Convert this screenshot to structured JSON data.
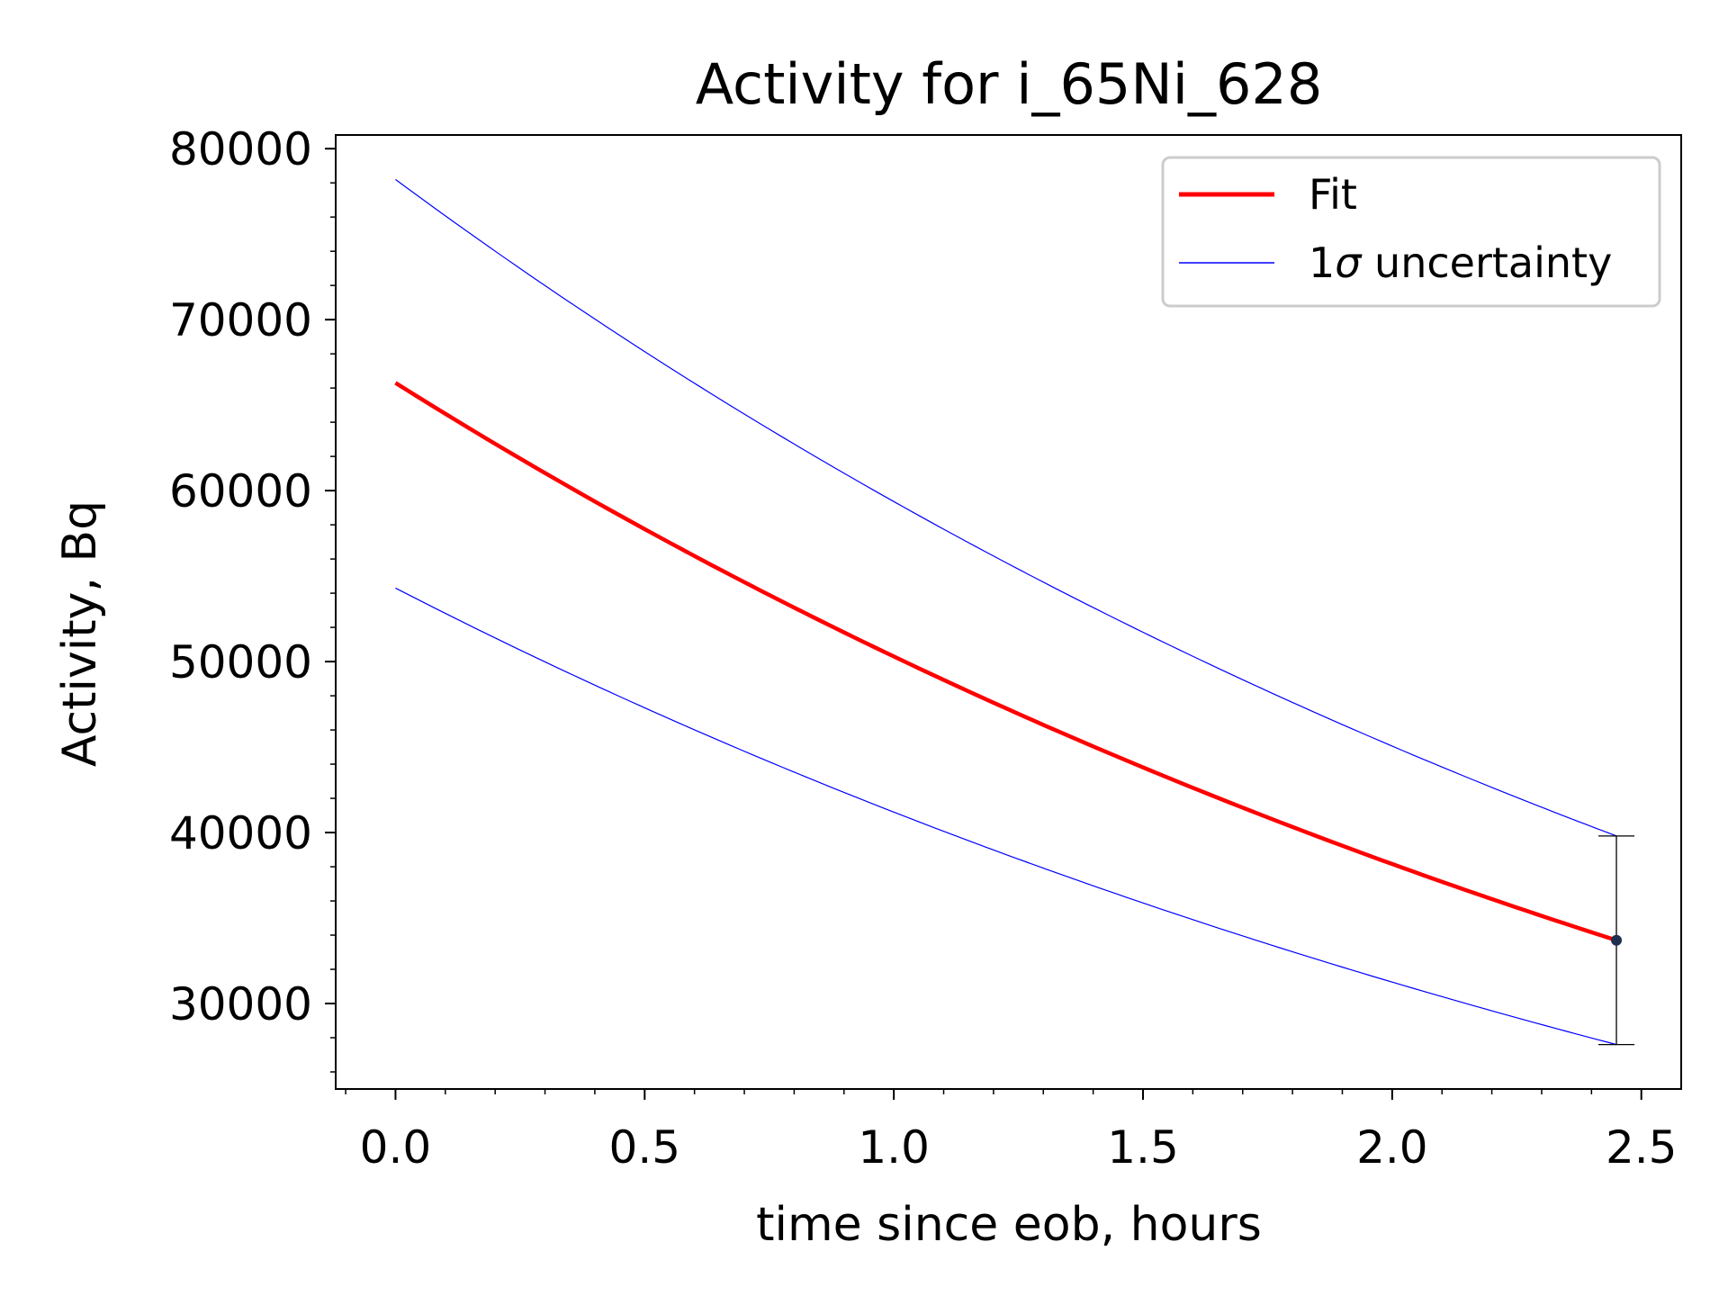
{
  "chart_data": {
    "type": "line",
    "title": "Activity for i_65Ni_628",
    "xlabel": "time since eob, hours",
    "ylabel": "Activity, Bq",
    "xlim": [
      -0.12,
      2.58
    ],
    "ylim": [
      25000,
      80800
    ],
    "xticks": [
      0.0,
      0.5,
      1.0,
      1.5,
      2.0,
      2.5
    ],
    "xtick_labels": [
      "0.0",
      "0.5",
      "1.0",
      "1.5",
      "2.0",
      "2.5"
    ],
    "yticks": [
      30000,
      40000,
      50000,
      60000,
      70000,
      80000
    ],
    "ytick_labels": [
      "30000",
      "40000",
      "50000",
      "60000",
      "70000",
      "80000"
    ],
    "legend_position": "top-right",
    "grid": false,
    "series": [
      {
        "name": "Fit",
        "color": "#ff0000",
        "style": "solid-thick",
        "x": [
          0.0,
          0.5,
          1.0,
          1.5,
          2.0,
          2.45
        ],
        "y": [
          66300,
          57800,
          50400,
          43900,
          38300,
          33700
        ]
      },
      {
        "name": "1σ uncertainty",
        "color": "#0000ff",
        "style": "solid-thin",
        "x": [
          0.0,
          0.5,
          1.0,
          1.5,
          2.0,
          2.45
        ],
        "y": [
          78200,
          68200,
          59500,
          51900,
          45300,
          39800
        ]
      },
      {
        "name": "",
        "legend": false,
        "color": "#0000ff",
        "style": "solid-thin",
        "x": [
          0.0,
          0.5,
          1.0,
          1.5,
          2.0,
          2.45
        ],
        "y": [
          54300,
          47300,
          41300,
          36000,
          31400,
          27600
        ]
      }
    ],
    "points": [
      {
        "x": 2.45,
        "y": 33700,
        "err_low": 27600,
        "err_high": 39800,
        "color": "#1f2f4f"
      }
    ],
    "legend": [
      {
        "label": "Fit",
        "color": "#ff0000"
      },
      {
        "label": "1",
        "label_sigma": "σ",
        "label_rest": " uncertainty",
        "color": "#0000ff"
      }
    ]
  }
}
